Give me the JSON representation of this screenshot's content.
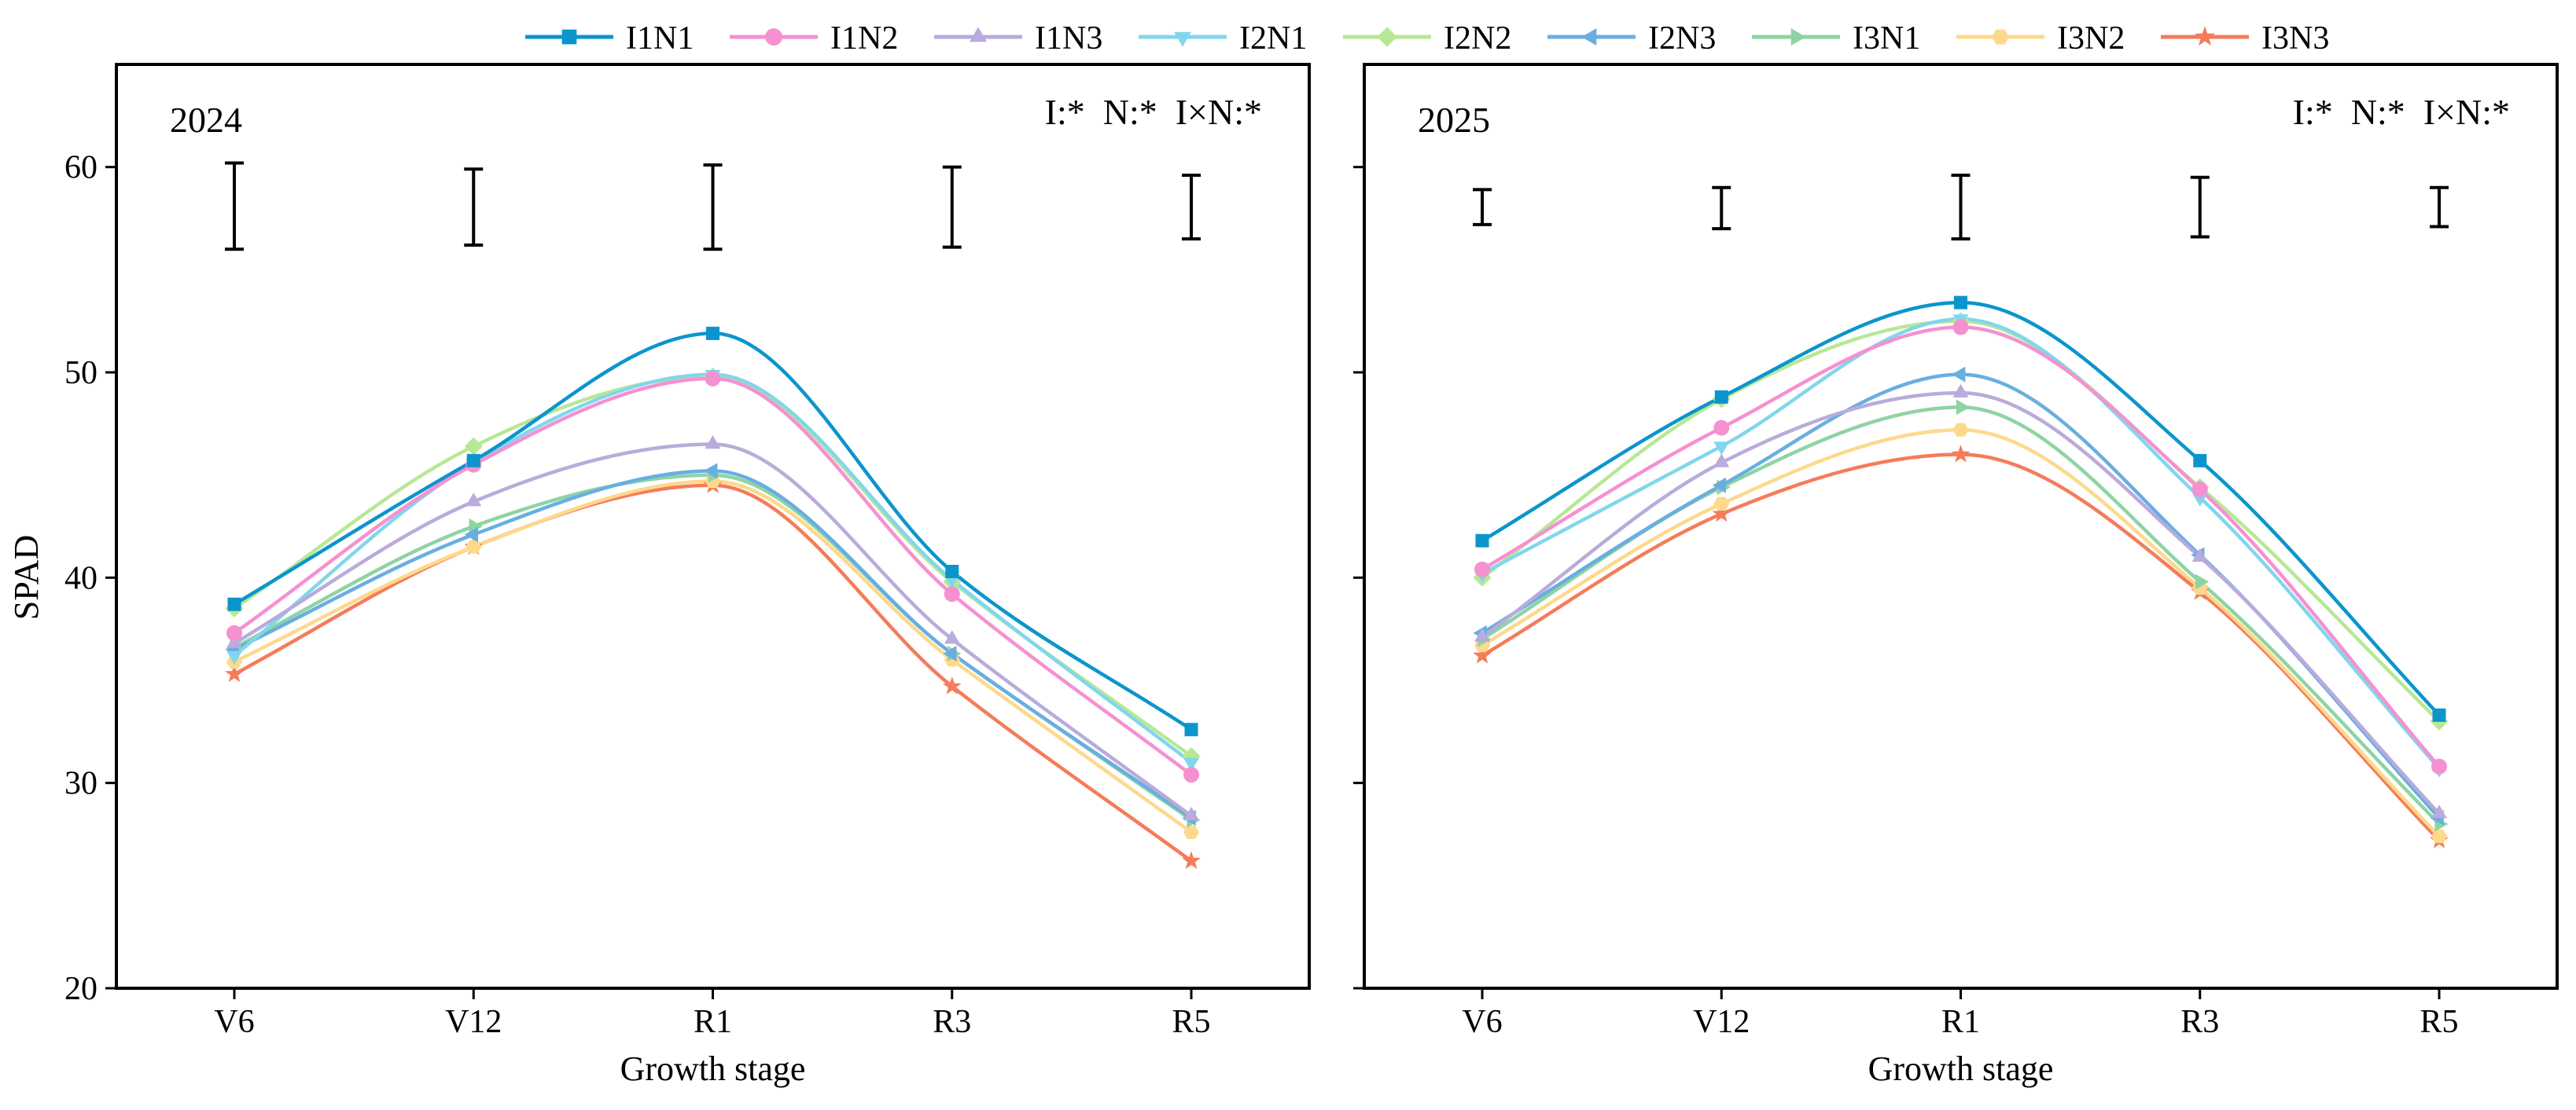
{
  "chart_data": {
    "type": "line",
    "legend": {
      "placement": "top",
      "entries": [
        "I1N1",
        "I1N2",
        "I1N3",
        "I2N1",
        "I2N2",
        "I2N3",
        "I3N1",
        "I3N2",
        "I3N3"
      ]
    },
    "series_styles": [
      {
        "name": "I1N1",
        "color": "#0b95cc",
        "marker": "square"
      },
      {
        "name": "I1N2",
        "color": "#f591d0",
        "marker": "circle"
      },
      {
        "name": "I1N3",
        "color": "#b9abdb",
        "marker": "triangle-up"
      },
      {
        "name": "I2N1",
        "color": "#82d6ec",
        "marker": "triangle-down"
      },
      {
        "name": "I2N2",
        "color": "#b7e895",
        "marker": "diamond"
      },
      {
        "name": "I2N3",
        "color": "#69aee0",
        "marker": "triangle-left"
      },
      {
        "name": "I3N1",
        "color": "#8ed4a3",
        "marker": "triangle-right"
      },
      {
        "name": "I3N2",
        "color": "#fdd98c",
        "marker": "hexagon"
      },
      {
        "name": "I3N3",
        "color": "#f47c5a",
        "marker": "star"
      }
    ],
    "ylabel": "SPAD",
    "ylim": [
      20,
      65
    ],
    "yticks": [
      "20",
      "30",
      "40",
      "50",
      "60"
    ],
    "panels": [
      {
        "year_label": "2024",
        "significance": "I:*  N:*  I×N:*",
        "xlabel": "Growth stage",
        "categories": [
          "V6",
          "V12",
          "R1",
          "R3",
          "R5"
        ],
        "error_bars": [
          {
            "low": 56.0,
            "high": 60.2
          },
          {
            "low": 56.2,
            "high": 59.9
          },
          {
            "low": 56.0,
            "high": 60.1
          },
          {
            "low": 56.1,
            "high": 60.0
          },
          {
            "low": 56.5,
            "high": 59.6
          }
        ],
        "series": [
          {
            "name": "I1N1",
            "values": [
              38.7,
              45.7,
              51.9,
              40.3,
              32.6
            ]
          },
          {
            "name": "I1N2",
            "values": [
              37.3,
              45.5,
              49.7,
              39.2,
              30.4
            ]
          },
          {
            "name": "I1N3",
            "values": [
              36.8,
              43.7,
              46.5,
              37.0,
              28.4
            ]
          },
          {
            "name": "I2N1",
            "values": [
              36.2,
              45.6,
              49.9,
              39.9,
              31.0
            ]
          },
          {
            "name": "I2N2",
            "values": [
              38.5,
              46.4,
              49.8,
              39.8,
              31.3
            ]
          },
          {
            "name": "I2N3",
            "values": [
              36.5,
              42.1,
              45.2,
              36.3,
              28.3
            ]
          },
          {
            "name": "I3N1",
            "values": [
              36.6,
              42.5,
              45.0,
              36.3,
              28.2
            ]
          },
          {
            "name": "I3N2",
            "values": [
              35.9,
              41.5,
              44.7,
              36.0,
              27.6
            ]
          },
          {
            "name": "I3N3",
            "values": [
              35.3,
              41.5,
              44.5,
              34.7,
              26.2
            ]
          }
        ]
      },
      {
        "year_label": "2025",
        "significance": "I:*  N:*  I×N:*",
        "xlabel": "Growth stage",
        "categories": [
          "V6",
          "V12",
          "R1",
          "R3",
          "R5"
        ],
        "error_bars": [
          {
            "low": 57.2,
            "high": 58.9
          },
          {
            "low": 57.0,
            "high": 59.0
          },
          {
            "low": 56.5,
            "high": 59.6
          },
          {
            "low": 56.6,
            "high": 59.5
          },
          {
            "low": 57.1,
            "high": 59.0
          }
        ],
        "series": [
          {
            "name": "I1N1",
            "values": [
              41.8,
              48.8,
              53.4,
              45.7,
              33.3
            ]
          },
          {
            "name": "I1N2",
            "values": [
              40.4,
              47.3,
              52.2,
              44.3,
              30.8
            ]
          },
          {
            "name": "I1N3",
            "values": [
              37.1,
              45.6,
              49.0,
              41.0,
              28.5
            ]
          },
          {
            "name": "I2N1",
            "values": [
              40.2,
              46.4,
              52.6,
              43.9,
              30.7
            ]
          },
          {
            "name": "I2N2",
            "values": [
              40.0,
              48.7,
              52.5,
              44.4,
              33.0
            ]
          },
          {
            "name": "I2N3",
            "values": [
              37.3,
              44.5,
              49.9,
              41.1,
              28.3
            ]
          },
          {
            "name": "I3N1",
            "values": [
              37.0,
              44.4,
              48.3,
              39.8,
              28.0
            ]
          },
          {
            "name": "I3N2",
            "values": [
              36.7,
              43.6,
              47.2,
              39.5,
              27.4
            ]
          },
          {
            "name": "I3N3",
            "values": [
              36.2,
              43.1,
              46.0,
              39.3,
              27.2
            ]
          }
        ]
      }
    ]
  }
}
